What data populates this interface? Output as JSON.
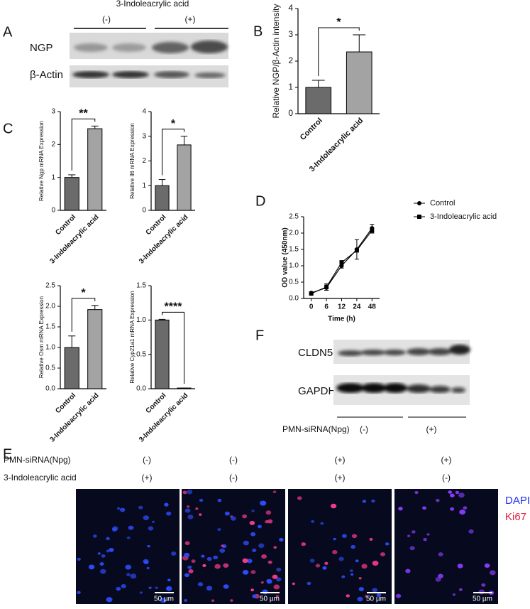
{
  "panel_labels": [
    "A",
    "B",
    "C",
    "D",
    "E",
    "F"
  ],
  "blot_a": {
    "title": "3-Indoleacrylic acid",
    "groups": [
      "(-)",
      "(+)"
    ],
    "rows": [
      "NGP",
      "β-Actin"
    ]
  },
  "blot_f": {
    "rows": [
      "CLDN5",
      "GAPDH"
    ],
    "condition": "PMN-siRNA(Npg)",
    "groups": [
      "(-)",
      "(+)"
    ]
  },
  "panel_e": {
    "row_labels": [
      "PMN-siRNA(Npg)",
      "3-Indoleacrylic acid"
    ],
    "columns": [
      [
        "(-)",
        "(+)"
      ],
      [
        "(-)",
        "(-)"
      ],
      [
        "(+)",
        "(+)"
      ],
      [
        "(+)",
        "(-)"
      ]
    ],
    "legend": [
      "DAPI",
      "Ki67"
    ],
    "scale_bar": "50 µm"
  },
  "chart_data": [
    {
      "type": "bar",
      "ylabel": "Relative NGP/β-Actin  intensity",
      "categories": [
        "Control",
        "3-Indoleacrylic acid"
      ],
      "values": [
        1.0,
        2.35
      ],
      "errors": [
        0.27,
        0.65
      ],
      "colors": [
        "#6b6b6b",
        "#a3a3a3"
      ],
      "ylim": [
        0,
        4
      ],
      "yticks": [
        0,
        1,
        2,
        3,
        4
      ],
      "significance": "*"
    },
    {
      "type": "bar",
      "ylabel": "Relative Ngp mRNA Expression",
      "categories": [
        "Control",
        "3-Indoleacrylic acid"
      ],
      "values": [
        1.0,
        2.48
      ],
      "errors": [
        0.08,
        0.08
      ],
      "colors": [
        "#6b6b6b",
        "#a3a3a3"
      ],
      "ylim": [
        0,
        3
      ],
      "yticks": [
        0,
        1,
        2,
        3
      ],
      "significance": "**"
    },
    {
      "type": "bar",
      "ylabel": "Relative Il6 mRNA Expression",
      "categories": [
        "Control",
        "3-Indoleacrylic acid"
      ],
      "values": [
        1.0,
        2.65
      ],
      "errors": [
        0.25,
        0.35
      ],
      "colors": [
        "#6b6b6b",
        "#a3a3a3"
      ],
      "ylim": [
        0,
        4
      ],
      "yticks": [
        0,
        1,
        2,
        3,
        4
      ],
      "significance": "*"
    },
    {
      "type": "bar",
      "ylabel": "Relative Osm mRNA Expression",
      "categories": [
        "Control",
        "3-Indoleacrylic acid"
      ],
      "values": [
        1.0,
        1.92
      ],
      "errors": [
        0.28,
        0.1
      ],
      "colors": [
        "#6b6b6b",
        "#a3a3a3"
      ],
      "ylim": [
        0,
        2.5
      ],
      "yticks": [
        {
          "value": 0,
          "label": "0.0"
        },
        0.5,
        {
          "value": 1,
          "label": "1.0"
        },
        1.5,
        {
          "value": 2,
          "label": "2.0"
        },
        2.5
      ],
      "significance": "*"
    },
    {
      "type": "bar",
      "ylabel": "Relative Cyp21a1 mRNA Expression",
      "categories": [
        "Control",
        "3-Indoleacrylic acid"
      ],
      "values": [
        1.0,
        0.01
      ],
      "errors": [
        0.01,
        0.0
      ],
      "colors": [
        "#6b6b6b",
        "#a3a3a3"
      ],
      "ylim": [
        0,
        1.5
      ],
      "yticks": [
        {
          "value": 0,
          "label": "0.0"
        },
        0.5,
        {
          "value": 1,
          "label": "1.0"
        },
        1.5
      ],
      "significance": "****"
    },
    {
      "type": "line",
      "xlabel": "Time  (h)",
      "ylabel": "OD value (450nm)",
      "categories": [
        "0",
        "6",
        "12",
        "24",
        "48"
      ],
      "series": [
        {
          "name": "Control",
          "color": "#000000",
          "marker": "circle",
          "values": [
            0.17,
            0.33,
            1.0,
            1.5,
            2.15
          ],
          "errors": [
            0.03,
            0.08,
            0.07,
            0.3,
            0.12
          ]
        },
        {
          "name": "3-Indoleacrylic acid",
          "color": "#000000",
          "marker": "square",
          "values": [
            0.15,
            0.35,
            1.1,
            1.47,
            2.08
          ],
          "errors": [
            0.02,
            0.1,
            0.06,
            0.05,
            0.08
          ]
        }
      ],
      "ylim": [
        0,
        2.5
      ],
      "yticks": [
        {
          "value": 0,
          "label": "0.0"
        },
        0.5,
        {
          "value": 1,
          "label": "1.0"
        },
        1.5,
        {
          "value": 2,
          "label": "2.0"
        },
        2.5
      ]
    }
  ]
}
